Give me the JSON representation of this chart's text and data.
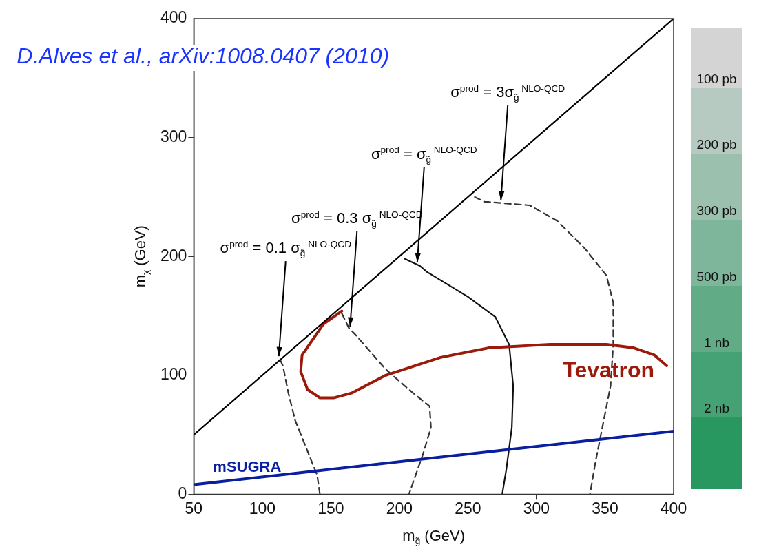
{
  "chart_data": {
    "type": "line",
    "xlabel": "m$_{g̃}$ (GeV)",
    "ylabel": "m$_{χ}$ (GeV)",
    "xlim": [
      50,
      400
    ],
    "xticks": [
      50,
      100,
      150,
      200,
      250,
      300,
      350,
      400
    ],
    "ylim": [
      0,
      400
    ],
    "yticks": [
      0,
      100,
      200,
      300,
      400
    ],
    "grid": false,
    "legend": false,
    "marker": "none",
    "series": [
      {
        "color": "#000000",
        "line_style": "solid",
        "x": [
          50,
          400
        ],
        "values": [
          50,
          400
        ]
      },
      {
        "name": "mSUGRA",
        "color": "#0a1fa0",
        "line_style": "solid",
        "x": [
          50,
          400
        ],
        "values": [
          8,
          53
        ]
      },
      {
        "name": "Tevatron",
        "color": "#9b1a0a",
        "line_style": "solid",
        "x": [
          158,
          144.5,
          129,
          128,
          133,
          142,
          152,
          165,
          190,
          230,
          265,
          310,
          351,
          371,
          386,
          395
        ],
        "values": [
          154,
          143,
          117,
          103,
          88,
          81,
          81,
          85,
          100,
          115,
          123,
          126,
          126,
          123,
          117,
          108
        ]
      },
      {
        "color": "#333333",
        "line_style": "dashed",
        "x": [
          113,
          115,
          119,
          124,
          132,
          140,
          142
        ],
        "values": [
          113,
          108,
          85,
          62,
          39,
          16,
          0
        ]
      },
      {
        "color": "#333333",
        "line_style": "dashed",
        "x": [
          158,
          163,
          168,
          190,
          210,
          222,
          223,
          217,
          210,
          207
        ],
        "values": [
          152,
          140,
          134,
          105,
          85,
          74,
          56,
          33,
          10,
          0
        ]
      },
      {
        "color": "#111111",
        "line_style": "solid",
        "x": [
          204,
          215,
          220,
          250,
          270,
          280,
          283,
          282,
          278,
          275
        ],
        "values": [
          198,
          192,
          187,
          166,
          149,
          126,
          91,
          56,
          21,
          0
        ]
      },
      {
        "color": "#333333",
        "line_style": "dashed",
        "x": [
          255,
          262,
          295,
          315,
          335,
          351,
          356,
          356,
          354,
          348,
          343,
          339
        ],
        "values": [
          250,
          246,
          243,
          230,
          207,
          184,
          161,
          126,
          91,
          56,
          27,
          0
        ]
      }
    ],
    "annotations": [
      {
        "text": "D.Alves et al., arXiv:1008.0407 (2010)"
      },
      {
        "text": "σ$^{prod}$ = 0.1 σ$_{g̃}$$^{ NLO-QCD}$",
        "x": 112,
        "y": 116
      },
      {
        "text": "σ$^{prod}$ = 0.3 σ$_{g̃}$$^{ NLO-QCD}$",
        "x": 164,
        "y": 141
      },
      {
        "text": "σ$^{prod}$ = σ$_{g̃}$$^{ NLO-QCD}$",
        "x": 213,
        "y": 195
      },
      {
        "text": "σ$^{prod}$ = 3σ$_{g̃}$$^{ NLO-QCD}$",
        "x": 274,
        "y": 247
      },
      "100 pb",
      "200 pb",
      "300 pb",
      "500 pb",
      "1 nb",
      "2 nb"
    ]
  }
}
